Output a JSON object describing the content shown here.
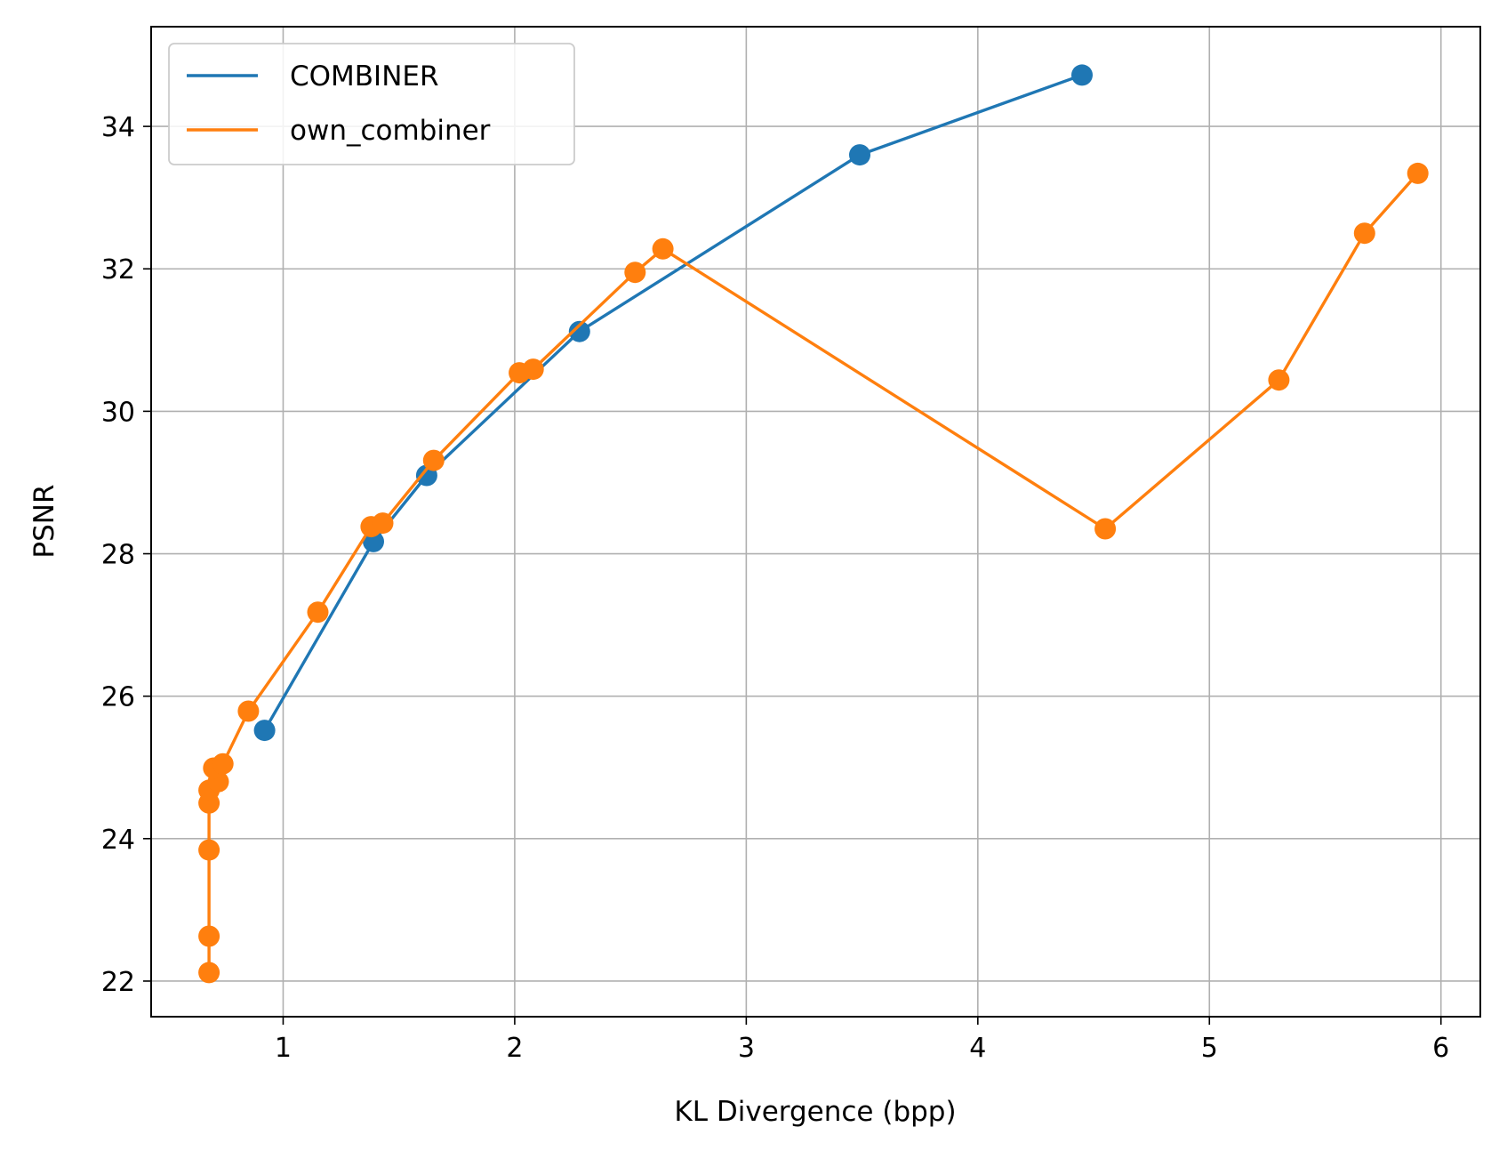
{
  "chart_data": {
    "type": "line",
    "title": "",
    "xlabel": "KL Divergence (bpp)",
    "ylabel": "PSNR",
    "xlim": [
      0.43,
      6.17
    ],
    "ylim": [
      21.5,
      35.4
    ],
    "xticks": [
      1,
      2,
      3,
      4,
      5,
      6
    ],
    "yticks": [
      22,
      24,
      26,
      28,
      30,
      32,
      34
    ],
    "grid": true,
    "legend_position": "top-left",
    "series": [
      {
        "name": "COMBINER",
        "color": "#1f77b4",
        "marker": "circle",
        "points": [
          {
            "x": 0.92,
            "y": 25.52
          },
          {
            "x": 1.39,
            "y": 28.17
          },
          {
            "x": 1.62,
            "y": 29.1
          },
          {
            "x": 2.28,
            "y": 31.12
          },
          {
            "x": 3.49,
            "y": 33.6
          },
          {
            "x": 4.45,
            "y": 34.72
          }
        ]
      },
      {
        "name": "own_combiner",
        "color": "#ff7f0e",
        "marker": "circle",
        "points": [
          {
            "x": 0.68,
            "y": 22.12
          },
          {
            "x": 0.68,
            "y": 22.63
          },
          {
            "x": 0.68,
            "y": 23.84
          },
          {
            "x": 0.68,
            "y": 24.5
          },
          {
            "x": 0.68,
            "y": 24.68
          },
          {
            "x": 0.72,
            "y": 24.8
          },
          {
            "x": 0.7,
            "y": 24.99
          },
          {
            "x": 0.74,
            "y": 25.05
          },
          {
            "x": 0.85,
            "y": 25.79
          },
          {
            "x": 1.15,
            "y": 27.18
          },
          {
            "x": 1.38,
            "y": 28.38
          },
          {
            "x": 1.43,
            "y": 28.43
          },
          {
            "x": 1.65,
            "y": 29.31
          },
          {
            "x": 2.02,
            "y": 30.54
          },
          {
            "x": 2.08,
            "y": 30.59
          },
          {
            "x": 2.52,
            "y": 31.95
          },
          {
            "x": 2.64,
            "y": 32.28
          },
          {
            "x": 4.55,
            "y": 28.35
          },
          {
            "x": 5.3,
            "y": 30.44
          },
          {
            "x": 5.67,
            "y": 32.5
          },
          {
            "x": 5.9,
            "y": 33.34
          }
        ]
      }
    ]
  }
}
